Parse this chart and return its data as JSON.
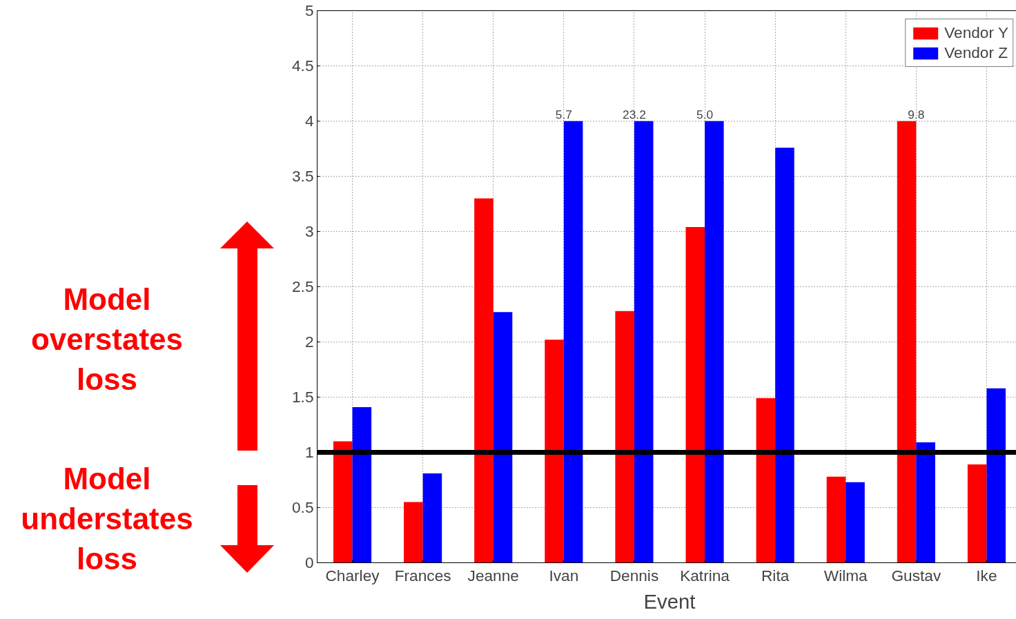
{
  "chart_data": {
    "type": "bar",
    "xlabel": "Event",
    "categories": [
      "Charley",
      "Frances",
      "Jeanne",
      "Ivan",
      "Dennis",
      "Katrina",
      "Rita",
      "Wilma",
      "Gustav",
      "Ike"
    ],
    "series": [
      {
        "name": "Vendor Y",
        "color": "#ff0000",
        "values": [
          1.1,
          0.55,
          3.3,
          2.02,
          2.28,
          3.04,
          1.49,
          0.78,
          4,
          0.89
        ]
      },
      {
        "name": "Vendor Z",
        "color": "#0000ff",
        "values": [
          1.41,
          0.81,
          2.27,
          4,
          4,
          4,
          3.76,
          0.73,
          1.09,
          1.58
        ]
      }
    ],
    "ylim": [
      0,
      5
    ],
    "yticks": [
      0,
      0.5,
      1,
      1.5,
      2,
      2.5,
      3,
      3.5,
      4,
      4.5,
      5
    ],
    "ref_lines": [
      {
        "axis": "y",
        "value": 1,
        "color": "#000000"
      }
    ],
    "annotations": [
      "Model overstates loss",
      "Model understates loss",
      {
        "text": "5.7",
        "x": "Ivan",
        "y": 4
      },
      {
        "text": "23.2",
        "x": "Dennis",
        "y": 4
      },
      {
        "text": "5.0",
        "x": "Katrina",
        "y": 4
      },
      {
        "text": "9.8",
        "x": "Gustav",
        "y": 4
      }
    ],
    "grid": true,
    "legend": "top right"
  }
}
